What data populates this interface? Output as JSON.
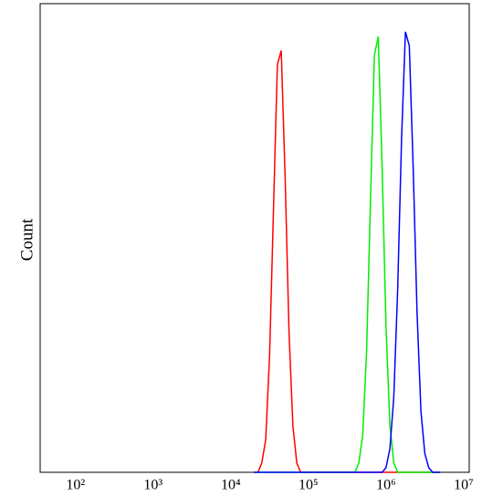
{
  "chart_data": {
    "type": "line",
    "y_label": "Count",
    "log_x": true,
    "xlim": [
      35,
      11800000
    ],
    "ylim": [
      0,
      100
    ],
    "xticks": [
      {
        "value": 100,
        "label": "10²"
      },
      {
        "value": 1000,
        "label": "10³"
      },
      {
        "value": 10000,
        "label": "10⁴"
      },
      {
        "value": 100000,
        "label": "10⁵"
      },
      {
        "value": 1000000,
        "label": "10⁶"
      },
      {
        "value": 10000000,
        "label": "10⁷"
      }
    ],
    "x": [
      19953,
      22387,
      25119,
      28184,
      31623,
      35481,
      39811,
      44668,
      50119,
      56234,
      63096,
      70795,
      79433,
      89125,
      100000,
      112202,
      125893,
      141254,
      158489,
      177828,
      199526,
      223872,
      251189,
      281838,
      316228,
      354813,
      398107,
      446684,
      501187,
      562341,
      630957,
      707946,
      794328,
      891251,
      1000000,
      1122018,
      1258925,
      1412538,
      1584893,
      1778279,
      1995262,
      2238721,
      2511886,
      2818383,
      3162278,
      3548134,
      3981072,
      4466836,
      5011872
    ],
    "series": [
      {
        "color": "#ff0000",
        "values": [
          0,
          0,
          2,
          7,
          25,
          56,
          87,
          90,
          63,
          30,
          10,
          2,
          0,
          0,
          0,
          0,
          0,
          0,
          0,
          0,
          0,
          0,
          0,
          0,
          0,
          0,
          0,
          0,
          0,
          0,
          0,
          0,
          0,
          0,
          0,
          0,
          0,
          0,
          0,
          0,
          0,
          0,
          0,
          0,
          0,
          0,
          0,
          0,
          0
        ]
      },
      {
        "color": "#00ee00",
        "values": [
          0,
          0,
          0,
          0,
          0,
          0,
          0,
          0,
          0,
          0,
          0,
          0,
          0,
          0,
          0,
          0,
          0,
          0,
          0,
          0,
          0,
          0,
          0,
          0,
          0,
          0,
          0,
          2,
          8,
          26,
          58,
          89,
          93,
          65,
          31,
          10,
          2,
          0,
          0,
          0,
          0,
          0,
          0,
          0,
          0,
          0,
          0,
          0,
          0
        ]
      },
      {
        "color": "#0000ff",
        "values": [
          0,
          0,
          0,
          0,
          0,
          0,
          0,
          0,
          0,
          0,
          0,
          0,
          0,
          0,
          0,
          0,
          0,
          0,
          0,
          0,
          0,
          0,
          0,
          0,
          0,
          0,
          0,
          0,
          0,
          0,
          0,
          0,
          0,
          0,
          1,
          5,
          16,
          39,
          71,
          94,
          91,
          65,
          34,
          13,
          4,
          1,
          0,
          0,
          0
        ]
      }
    ]
  }
}
